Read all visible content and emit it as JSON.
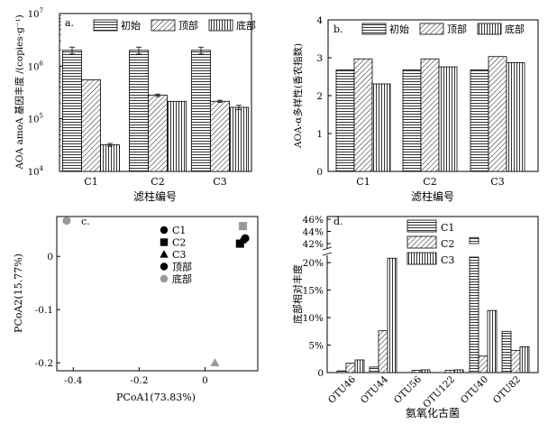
{
  "chart_data": [
    {
      "id": "a",
      "panel_label": "a.",
      "type": "bar",
      "scale": "log",
      "categories": [
        "C1",
        "C2",
        "C3"
      ],
      "series": [
        {
          "name": "初始",
          "pattern": "hlines",
          "values": [
            2000000,
            2000000,
            2000000
          ],
          "errors": [
            300000,
            300000,
            300000
          ]
        },
        {
          "name": "顶部",
          "pattern": "diag",
          "values": [
            550000,
            280000,
            215000
          ],
          "errors": [
            0,
            15000,
            10000
          ]
        },
        {
          "name": "底部",
          "pattern": "vlines",
          "values": [
            32000,
            215000,
            165000
          ],
          "errors": [
            2000,
            0,
            15000
          ]
        }
      ],
      "ylabel": "AOA amoA 基因丰度 /(copies·g⁻¹)",
      "xlabel": "滤柱编号",
      "ylim": [
        10000,
        10000000
      ],
      "yticks": [
        {
          "value": 10000,
          "base": "10",
          "exp": "4"
        },
        {
          "value": 100000,
          "base": "10",
          "exp": "5"
        },
        {
          "value": 1000000,
          "base": "10",
          "exp": "6"
        },
        {
          "value": 10000000,
          "base": "10",
          "exp": "7"
        }
      ],
      "legend": "top-right"
    },
    {
      "id": "b",
      "panel_label": "b.",
      "type": "bar",
      "scale": "linear",
      "categories": [
        "C1",
        "C2",
        "C3"
      ],
      "series": [
        {
          "name": "初始",
          "pattern": "hlines",
          "values": [
            2.68,
            2.68,
            2.68
          ]
        },
        {
          "name": "顶部",
          "pattern": "diag",
          "values": [
            2.97,
            2.97,
            3.03
          ]
        },
        {
          "name": "底部",
          "pattern": "vlines",
          "values": [
            2.31,
            2.76,
            2.87
          ]
        }
      ],
      "ylabel": "AOA-α多样性(香农指数)",
      "xlabel": "滤柱编号",
      "ylim": [
        0,
        4
      ],
      "yticks": [
        "0",
        "1",
        "2",
        "3",
        "4"
      ],
      "legend": "top-right"
    },
    {
      "id": "c",
      "panel_label": "c.",
      "type": "scatter",
      "xlabel": "PCoA1(73.83%)",
      "ylabel": "PCoA2(15.77%)",
      "xlim": [
        -0.45,
        0.16
      ],
      "ylim": [
        -0.215,
        0.075
      ],
      "xticks": [
        "-0.4",
        "-0.2",
        "0"
      ],
      "yticks": [
        "0",
        "-0.1",
        "-0.2"
      ],
      "legend_entries": [
        {
          "label": "C1",
          "marker": "circle",
          "color": "#000000"
        },
        {
          "label": "C2",
          "marker": "square",
          "color": "#000000"
        },
        {
          "label": "C3",
          "marker": "triangle",
          "color": "#000000"
        },
        {
          "label": "顶部",
          "marker": "circle",
          "color": "#000000"
        },
        {
          "label": "底部",
          "marker": "circle",
          "color": "#999999"
        }
      ],
      "points": [
        {
          "name": "C1-底部",
          "x": -0.42,
          "y": 0.067,
          "marker": "circle",
          "color": "#999999"
        },
        {
          "name": "C3-底部",
          "x": 0.03,
          "y": -0.2,
          "marker": "triangle",
          "color": "#999999"
        },
        {
          "name": "C2-底部",
          "x": 0.115,
          "y": 0.057,
          "marker": "square",
          "color": "#999999"
        },
        {
          "name": "C1-顶部",
          "x": 0.122,
          "y": 0.034,
          "marker": "circle",
          "color": "#000000"
        },
        {
          "name": "C2-顶部",
          "x": 0.106,
          "y": 0.024,
          "marker": "square",
          "color": "#000000"
        },
        {
          "name": "C3-顶部",
          "x": 0.113,
          "y": 0.031,
          "marker": "triangle",
          "color": "#000000"
        }
      ]
    },
    {
      "id": "d",
      "panel_label": "d.",
      "type": "bar",
      "scale": "broken",
      "categories": [
        "OTU46",
        "OTU44",
        "OTU56",
        "OTU122",
        "OTU40",
        "OTU82"
      ],
      "series": [
        {
          "name": "C1",
          "pattern": "hlines",
          "values": [
            0.3,
            1.0,
            0.0,
            0.0,
            43.0,
            7.5
          ]
        },
        {
          "name": "C2",
          "pattern": "diag",
          "values": [
            1.7,
            7.6,
            0.4,
            0.4,
            3.0,
            4.0
          ]
        },
        {
          "name": "C3",
          "pattern": "vlines",
          "values": [
            2.3,
            20.8,
            0.5,
            0.5,
            11.3,
            4.7
          ]
        }
      ],
      "ylabel": "底部相对丰度",
      "xlabel": "氨氧化古菌",
      "lower_range": [
        0,
        21
      ],
      "upper_range": [
        42,
        46
      ],
      "yticks_lower": [
        "0",
        "5%",
        "10%",
        "15%",
        "20%"
      ],
      "yticks_upper": [
        "42%",
        "44%",
        "46%"
      ],
      "legend": "top-left"
    }
  ]
}
